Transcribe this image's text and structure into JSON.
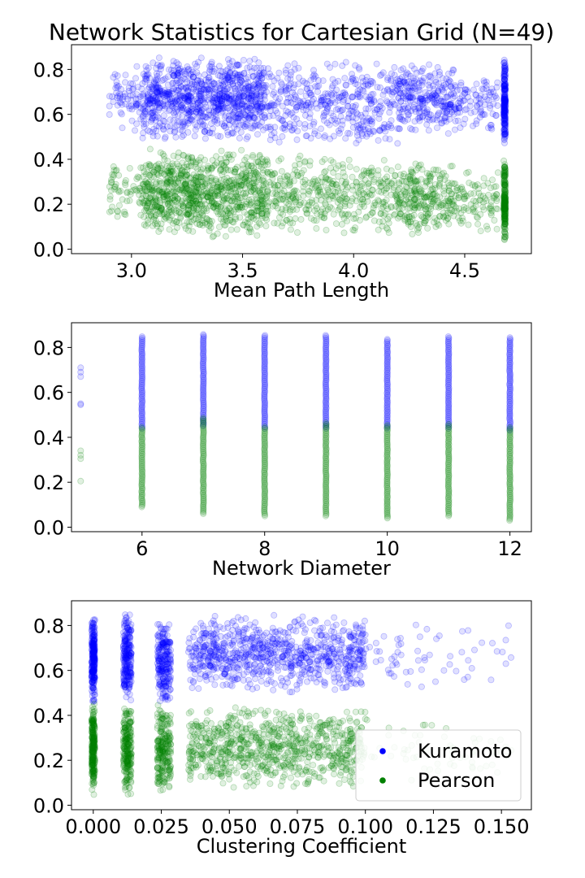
{
  "figure_title": "Network Statistics for Cartesian Grid (N=49)",
  "colors": {
    "kuramoto": "#0000ff",
    "pearson": "#008000"
  },
  "legend": {
    "placement": "lower-right",
    "entries": [
      "Kuramoto",
      "Pearson"
    ]
  },
  "chart_data": [
    {
      "type": "scatter",
      "xlabel": "Mean Path Length",
      "ylabel": "",
      "xlim": [
        2.73,
        4.8
      ],
      "ylim": [
        -0.02,
        0.91
      ],
      "xticks": [
        3.0,
        3.5,
        4.0,
        4.5
      ],
      "xtick_labels": [
        "3.0",
        "3.5",
        "4.0",
        "4.5"
      ],
      "yticks": [
        0.0,
        0.2,
        0.4,
        0.6,
        0.8
      ],
      "ytick_labels": [
        "0.0",
        "0.2",
        "0.4",
        "0.6",
        "0.8"
      ],
      "series": [
        {
          "name": "Kuramoto",
          "clusters": [
            {
              "x": [
                2.9,
                3.05
              ],
              "y": [
                0.5,
                0.85
              ],
              "n": 70
            },
            {
              "x": [
                3.05,
                3.6
              ],
              "y": [
                0.48,
                0.86
              ],
              "n": 900
            },
            {
              "x": [
                3.6,
                4.2
              ],
              "y": [
                0.45,
                0.85
              ],
              "n": 420
            },
            {
              "x": [
                4.2,
                4.45
              ],
              "y": [
                0.5,
                0.84
              ],
              "n": 260
            },
            {
              "x": [
                4.45,
                4.65
              ],
              "y": [
                0.5,
                0.8
              ],
              "n": 100
            },
            {
              "x": [
                4.68,
                4.68
              ],
              "y": [
                0.45,
                0.85
              ],
              "n": 200,
              "spread": 0.004
            }
          ]
        },
        {
          "name": "Pearson",
          "clusters": [
            {
              "x": [
                2.9,
                3.05
              ],
              "y": [
                0.12,
                0.4
              ],
              "n": 60
            },
            {
              "x": [
                3.05,
                3.6
              ],
              "y": [
                0.05,
                0.45
              ],
              "n": 900
            },
            {
              "x": [
                3.6,
                4.2
              ],
              "y": [
                0.05,
                0.43
              ],
              "n": 420
            },
            {
              "x": [
                4.2,
                4.45
              ],
              "y": [
                0.05,
                0.4
              ],
              "n": 260
            },
            {
              "x": [
                4.45,
                4.65
              ],
              "y": [
                0.05,
                0.37
              ],
              "n": 100
            },
            {
              "x": [
                4.68,
                4.68
              ],
              "y": [
                0.03,
                0.42
              ],
              "n": 200,
              "spread": 0.004
            }
          ]
        }
      ]
    },
    {
      "type": "scatter",
      "xlabel": "Network Diameter",
      "ylabel": "",
      "xlim": [
        4.85,
        12.35
      ],
      "ylim": [
        -0.02,
        0.91
      ],
      "xticks": [
        6,
        8,
        10,
        12
      ],
      "xtick_labels": [
        "6",
        "8",
        "10",
        "12"
      ],
      "yticks": [
        0.0,
        0.2,
        0.4,
        0.6,
        0.8
      ],
      "ytick_labels": [
        "0.0",
        "0.2",
        "0.4",
        "0.6",
        "0.8"
      ],
      "series": [
        {
          "name": "Kuramoto",
          "points": [
            [
              5,
              0.71
            ],
            [
              5,
              0.69
            ],
            [
              5,
              0.67
            ],
            [
              5,
              0.55
            ],
            [
              5,
              0.545
            ]
          ],
          "columns": [
            {
              "x": 6,
              "y": [
                0.44,
                0.85
              ]
            },
            {
              "x": 7,
              "y": [
                0.45,
                0.86
              ]
            },
            {
              "x": 8,
              "y": [
                0.44,
                0.86
              ]
            },
            {
              "x": 9,
              "y": [
                0.44,
                0.86
              ]
            },
            {
              "x": 10,
              "y": [
                0.44,
                0.84
              ]
            },
            {
              "x": 11,
              "y": [
                0.44,
                0.85
              ]
            },
            {
              "x": 12,
              "y": [
                0.43,
                0.85
              ]
            }
          ]
        },
        {
          "name": "Pearson",
          "points": [
            [
              5,
              0.34
            ],
            [
              5,
              0.32
            ],
            [
              5,
              0.305
            ],
            [
              5,
              0.205
            ]
          ],
          "columns": [
            {
              "x": 6,
              "y": [
                0.09,
                0.45
              ]
            },
            {
              "x": 7,
              "y": [
                0.06,
                0.49
              ]
            },
            {
              "x": 8,
              "y": [
                0.05,
                0.45
              ]
            },
            {
              "x": 9,
              "y": [
                0.05,
                0.47
              ]
            },
            {
              "x": 10,
              "y": [
                0.04,
                0.46
              ]
            },
            {
              "x": 11,
              "y": [
                0.05,
                0.46
              ]
            },
            {
              "x": 12,
              "y": [
                0.03,
                0.45
              ]
            }
          ]
        }
      ]
    },
    {
      "type": "scatter",
      "xlabel": "Clustering Coefficient",
      "ylabel": "",
      "xlim": [
        -0.008,
        0.161
      ],
      "ylim": [
        -0.02,
        0.91
      ],
      "xticks": [
        0.0,
        0.025,
        0.05,
        0.075,
        0.1,
        0.125,
        0.15
      ],
      "xtick_labels": [
        "0.000",
        "0.025",
        "0.050",
        "0.075",
        "0.100",
        "0.125",
        "0.150"
      ],
      "yticks": [
        0.0,
        0.2,
        0.4,
        0.6,
        0.8
      ],
      "ytick_labels": [
        "0.0",
        "0.2",
        "0.4",
        "0.6",
        "0.8"
      ],
      "legend": [
        "Kuramoto",
        "Pearson"
      ],
      "series": [
        {
          "name": "Kuramoto",
          "clusters": [
            {
              "x": [
                0.0,
                0.0
              ],
              "y": [
                0.45,
                0.86
              ],
              "n": 250,
              "spread": 0.0006
            },
            {
              "x": [
                0.0125,
                0.0125
              ],
              "y": [
                0.45,
                0.86
              ],
              "n": 220,
              "spread": 0.0015
            },
            {
              "x": [
                0.026,
                0.026
              ],
              "y": [
                0.45,
                0.85
              ],
              "n": 220,
              "spread": 0.0025
            },
            {
              "x": [
                0.035,
                0.1
              ],
              "y": [
                0.5,
                0.85
              ],
              "n": 800
            },
            {
              "x": [
                0.1,
                0.155
              ],
              "y": [
                0.5,
                0.83
              ],
              "n": 60
            }
          ]
        },
        {
          "name": "Pearson",
          "clusters": [
            {
              "x": [
                0.0,
                0.0
              ],
              "y": [
                0.04,
                0.46
              ],
              "n": 250,
              "spread": 0.0006
            },
            {
              "x": [
                0.0125,
                0.0125
              ],
              "y": [
                0.04,
                0.45
              ],
              "n": 220,
              "spread": 0.0015
            },
            {
              "x": [
                0.026,
                0.026
              ],
              "y": [
                0.04,
                0.45
              ],
              "n": 220,
              "spread": 0.0025
            },
            {
              "x": [
                0.035,
                0.1
              ],
              "y": [
                0.06,
                0.45
              ],
              "n": 800
            },
            {
              "x": [
                0.1,
                0.155
              ],
              "y": [
                0.1,
                0.4
              ],
              "n": 60
            }
          ]
        }
      ]
    }
  ]
}
